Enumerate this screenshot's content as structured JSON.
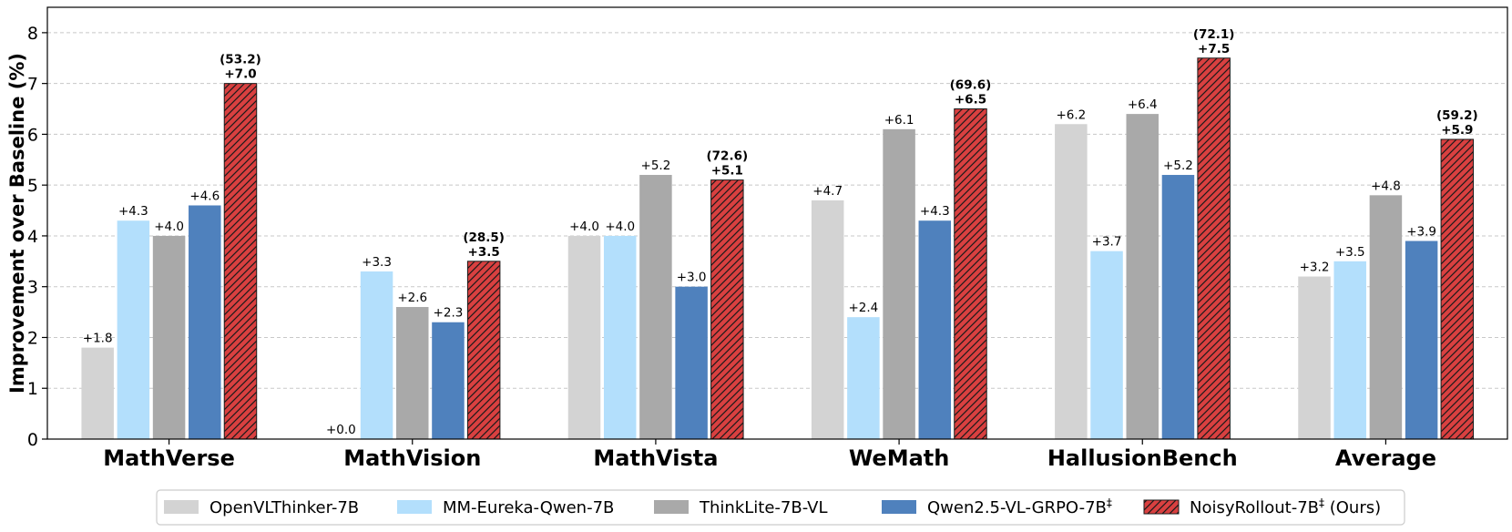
{
  "chart_data": {
    "type": "bar",
    "ylabel": "Improvement over Baseline (%)",
    "ylim": [
      0,
      8.5
    ],
    "yticks": [
      "0",
      "1",
      "2",
      "3",
      "4",
      "5",
      "6",
      "7",
      "8"
    ],
    "grid": "horizontal-dashed",
    "legend_position": "bottom",
    "categories": [
      "MathVerse",
      "MathVision",
      "MathVista",
      "WeMath",
      "HallusionBench",
      "Average"
    ],
    "series": [
      {
        "name": "OpenVLThinker-7B",
        "color": "#d3d3d3",
        "hatch": false,
        "values": [
          1.8,
          0.0,
          4.0,
          4.7,
          6.2,
          3.2
        ],
        "labels": [
          "+1.8",
          "+0.0",
          "+4.0",
          "+4.7",
          "+6.2",
          "+3.2"
        ]
      },
      {
        "name": "MM-Eureka-Qwen-7B",
        "color": "#b3dffc",
        "hatch": false,
        "values": [
          4.3,
          3.3,
          4.0,
          2.4,
          3.7,
          3.5
        ],
        "labels": [
          "+4.3",
          "+3.3",
          "+4.0",
          "+2.4",
          "+3.7",
          "+3.5"
        ]
      },
      {
        "name": "ThinkLite-7B-VL",
        "color": "#a9a9a9",
        "hatch": false,
        "values": [
          4.0,
          2.6,
          5.2,
          6.1,
          6.4,
          4.8
        ],
        "labels": [
          "+4.0",
          "+2.6",
          "+5.2",
          "+6.1",
          "+6.4",
          "+4.8"
        ]
      },
      {
        "name": "Qwen2.5-VL-GRPO-7B",
        "superscript": "‡",
        "color": "#4f81bd",
        "hatch": false,
        "values": [
          4.6,
          2.3,
          3.0,
          4.3,
          5.2,
          3.9
        ],
        "labels": [
          "+4.6",
          "+2.3",
          "+3.0",
          "+4.3",
          "+5.2",
          "+3.9"
        ]
      },
      {
        "name": "NoisyRollout-7B",
        "superscript": "‡",
        "suffix": " (Ours)",
        "color": "#d94040",
        "hatch": true,
        "values": [
          7.0,
          3.5,
          5.1,
          6.5,
          7.5,
          5.9
        ],
        "labels": [
          "+7.0",
          "+3.5",
          "+5.1",
          "+6.5",
          "+7.5",
          "+5.9"
        ],
        "abs_labels": [
          "(53.2)",
          "(28.5)",
          "(72.6)",
          "(69.6)",
          "(72.1)",
          "(59.2)"
        ]
      }
    ]
  }
}
